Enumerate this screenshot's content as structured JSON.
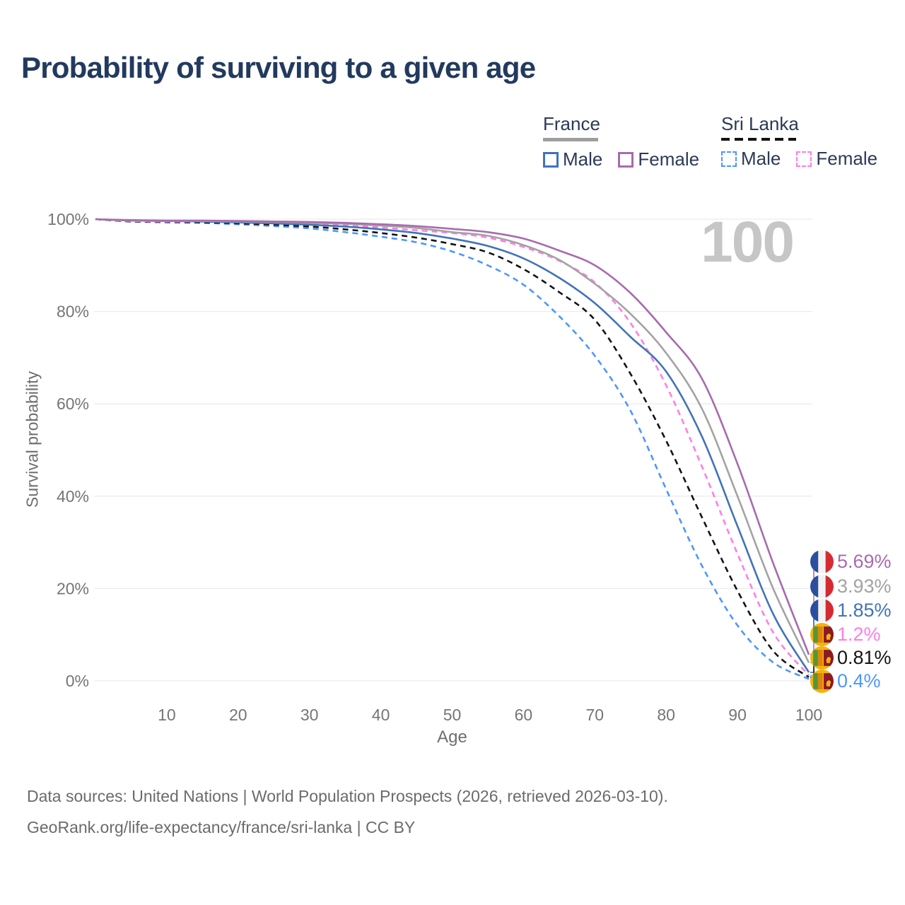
{
  "title": "Probability of surviving to a given age",
  "watermark": "100",
  "legend": {
    "groups": [
      {
        "name": "France",
        "underline": "solid",
        "items": [
          {
            "label": "Male",
            "series_index": 2
          },
          {
            "label": "Female",
            "series_index": 0
          }
        ]
      },
      {
        "name": "Sri Lanka",
        "underline": "dashed",
        "items": [
          {
            "label": "Male",
            "series_index": 5
          },
          {
            "label": "Female",
            "series_index": 3
          }
        ]
      }
    ]
  },
  "axes": {
    "x_label": "Age",
    "y_label": "Survival probability",
    "y_ticks": [
      {
        "label": "0%",
        "value": 0
      },
      {
        "label": "20%",
        "value": 20
      },
      {
        "label": "40%",
        "value": 40
      },
      {
        "label": "60%",
        "value": 60
      },
      {
        "label": "80%",
        "value": 80
      },
      {
        "label": "100%",
        "value": 100
      }
    ],
    "x_ticks": [
      10,
      20,
      30,
      40,
      50,
      60,
      70,
      80,
      90,
      100
    ]
  },
  "footer": {
    "line1": "Data sources: United Nations | World Population Prospects (2026, retrieved 2026-03-10).",
    "line2": "GeoRank.org/life-expectancy/france/sri-lanka | CC BY"
  },
  "chart_data": {
    "type": "line",
    "title": "Probability of surviving to a given age",
    "xlabel": "Age",
    "ylabel": "Survival probability",
    "xlim": [
      0,
      100
    ],
    "ylim": [
      0,
      100
    ],
    "grid": "horizontal",
    "legend_position": "top-right",
    "x": [
      0,
      5,
      10,
      15,
      20,
      25,
      30,
      35,
      40,
      45,
      50,
      55,
      60,
      65,
      70,
      75,
      80,
      85,
      90,
      95,
      100
    ],
    "series": [
      {
        "name": "France Female",
        "country": "France",
        "sex": "Female",
        "flag": "fr",
        "color": "#a86bae",
        "line": "solid",
        "end_label": "5.69%",
        "values": [
          100,
          99.8,
          99.7,
          99.7,
          99.6,
          99.5,
          99.4,
          99.2,
          98.9,
          98.5,
          97.9,
          97.2,
          95.8,
          93.2,
          90.0,
          84.0,
          75.5,
          65.5,
          47.0,
          25.5,
          5.69
        ]
      },
      {
        "name": "France Both sexes",
        "country": "France",
        "sex": "Both",
        "flag": "fr",
        "color": "#a3a3a3",
        "line": "solid",
        "end_label": "3.93%",
        "values": [
          100,
          99.7,
          99.6,
          99.6,
          99.5,
          99.4,
          99.2,
          99.0,
          98.6,
          98.1,
          97.2,
          96.4,
          94.4,
          91.2,
          86.0,
          79.5,
          71.0,
          59.0,
          40.0,
          20.0,
          3.93
        ]
      },
      {
        "name": "France Male",
        "country": "France",
        "sex": "Male",
        "flag": "fr",
        "color": "#4273b8",
        "line": "solid",
        "end_label": "1.85%",
        "values": [
          100,
          99.7,
          99.6,
          99.5,
          99.3,
          99.1,
          98.8,
          98.4,
          97.8,
          97.0,
          95.8,
          94.2,
          91.5,
          87.3,
          81.8,
          74.5,
          67.0,
          53.0,
          33.5,
          14.5,
          1.85
        ]
      },
      {
        "name": "Sri Lanka Female",
        "country": "Sri Lanka",
        "sex": "Female",
        "flag": "lk",
        "color": "#ff7de9",
        "line": "dashed",
        "end_label": "1.2%",
        "values": [
          100,
          99.6,
          99.5,
          99.5,
          99.4,
          99.2,
          99.0,
          98.7,
          98.2,
          97.6,
          97.0,
          96.0,
          94.0,
          91.0,
          86.3,
          77.5,
          64.0,
          46.5,
          27.5,
          10.5,
          1.2
        ]
      },
      {
        "name": "Sri Lanka Both sexes",
        "country": "Sri Lanka",
        "sex": "Both",
        "flag": "lk",
        "color": "#141414",
        "line": "dashed",
        "end_label": "0.81%",
        "values": [
          100,
          99.5,
          99.4,
          99.3,
          99.1,
          98.8,
          98.4,
          97.8,
          97.0,
          96.0,
          94.6,
          92.8,
          89.2,
          84.2,
          78.2,
          66.5,
          52.0,
          35.5,
          19.5,
          6.5,
          0.81
        ]
      },
      {
        "name": "Sri Lanka Male",
        "country": "Sri Lanka",
        "sex": "Male",
        "flag": "lk",
        "color": "#4d97ff",
        "line": "dashed",
        "end_label": "0.4%",
        "values": [
          100,
          99.5,
          99.3,
          99.2,
          98.9,
          98.5,
          98.0,
          97.2,
          96.2,
          95.0,
          93.0,
          90.0,
          85.8,
          79.0,
          70.4,
          58.5,
          41.5,
          25.0,
          12.0,
          4.0,
          0.4
        ]
      }
    ]
  }
}
